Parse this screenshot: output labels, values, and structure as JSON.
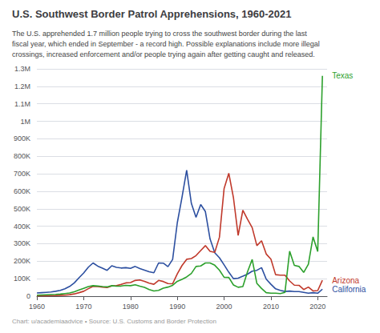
{
  "chart_data": {
    "type": "line",
    "title": "U.S. Southwest Border Patrol Apprehensions, 1960-2021",
    "subtitle": "The U.S. apprehended 1.7 million people trying to cross the southwest border during the last\nfiscal year, which ended in September - a record high. Possible explanations include more illegal\ncrossings, increased enforcement and/or people trying again after getting caught and released.",
    "caption": "Chart: u/academiaadvice • Source: U.S. Customs and Border Protection",
    "x": [
      1960,
      1961,
      1962,
      1963,
      1964,
      1965,
      1966,
      1967,
      1968,
      1969,
      1970,
      1971,
      1972,
      1973,
      1974,
      1975,
      1976,
      1977,
      1978,
      1979,
      1980,
      1981,
      1982,
      1983,
      1984,
      1985,
      1986,
      1987,
      1988,
      1989,
      1990,
      1991,
      1992,
      1993,
      1994,
      1995,
      1996,
      1997,
      1998,
      1999,
      2000,
      2001,
      2002,
      2003,
      2004,
      2005,
      2006,
      2007,
      2008,
      2009,
      2010,
      2011,
      2012,
      2013,
      2014,
      2015,
      2016,
      2017,
      2018,
      2019,
      2020,
      2021
    ],
    "series": [
      {
        "name": "California",
        "color": "#2c4fa0",
        "values": [
          18000,
          20000,
          22000,
          24000,
          28000,
          33000,
          42000,
          56000,
          76000,
          105000,
          133000,
          166000,
          190000,
          172000,
          160000,
          148000,
          174000,
          165000,
          161000,
          163000,
          159000,
          170000,
          158000,
          149000,
          140000,
          134000,
          190000,
          189000,
          169000,
          210000,
          420000,
          565000,
          720000,
          531000,
          451000,
          524000,
          484000,
          327000,
          248000,
          220000,
          179000,
          137000,
          100000,
          103000,
          114000,
          126000,
          143000,
          148000,
          163000,
          97000,
          68000,
          42000,
          33000,
          27000,
          29000,
          26000,
          26000,
          22000,
          17000,
          20000,
          17000,
          40000
        ]
      },
      {
        "name": "Arizona",
        "color": "#c0392b",
        "values": [
          2000,
          2500,
          3000,
          3500,
          4000,
          5000,
          6000,
          8500,
          13000,
          20000,
          28000,
          43000,
          56000,
          55000,
          52000,
          49000,
          58000,
          61000,
          67000,
          76000,
          78000,
          90000,
          93000,
          85000,
          74000,
          68000,
          90000,
          84000,
          72000,
          71000,
          128000,
          175000,
          211000,
          215000,
          232000,
          261000,
          289000,
          256000,
          251000,
          337000,
          616000,
          703000,
          562000,
          347000,
          491000,
          440000,
          392000,
          289000,
          317000,
          241000,
          212000,
          123000,
          120000,
          120000,
          87000,
          63000,
          62000,
          38000,
          52000,
          30000,
          32000,
          91000
        ]
      },
      {
        "name": "Texas",
        "color": "#2ca02c",
        "values": [
          6000,
          7000,
          8000,
          9000,
          10000,
          12000,
          15000,
          18000,
          25000,
          35000,
          45000,
          55000,
          60000,
          58000,
          55000,
          53000,
          60000,
          57000,
          58000,
          62000,
          60000,
          65000,
          57000,
          50000,
          38000,
          30000,
          33000,
          46000,
          52000,
          62000,
          85000,
          96000,
          110000,
          130000,
          170000,
          173000,
          190000,
          190000,
          177000,
          149000,
          108000,
          107000,
          64000,
          51000,
          55000,
          140000,
          210000,
          73000,
          44000,
          20000,
          17000,
          17000,
          15000,
          22000,
          257000,
          176000,
          170000,
          136000,
          183000,
          339000,
          255000,
          1260000
        ]
      }
    ],
    "xlim": [
      1960,
      2022
    ],
    "xticks": [
      1960,
      1970,
      1980,
      1990,
      2000,
      2010,
      2020
    ],
    "ylim": [
      0,
      1300000
    ],
    "yticks": [
      0,
      {
        "value": 100000,
        "label": "100K"
      },
      {
        "value": 200000,
        "label": "200K"
      },
      {
        "value": 300000,
        "label": "300K"
      },
      {
        "value": 400000,
        "label": "400K"
      },
      {
        "value": 500000,
        "label": "500K"
      },
      {
        "value": 600000,
        "label": "600K"
      },
      {
        "value": 700000,
        "label": "700K"
      },
      {
        "value": 800000,
        "label": "800K"
      },
      {
        "value": 900000,
        "label": "900K"
      },
      {
        "value": 1000000,
        "label": "1M"
      },
      {
        "value": 1100000,
        "label": "1.1M"
      },
      {
        "value": 1200000,
        "label": "1.2M"
      },
      {
        "value": 1300000,
        "label": "1.3M"
      }
    ],
    "grid": true
  }
}
